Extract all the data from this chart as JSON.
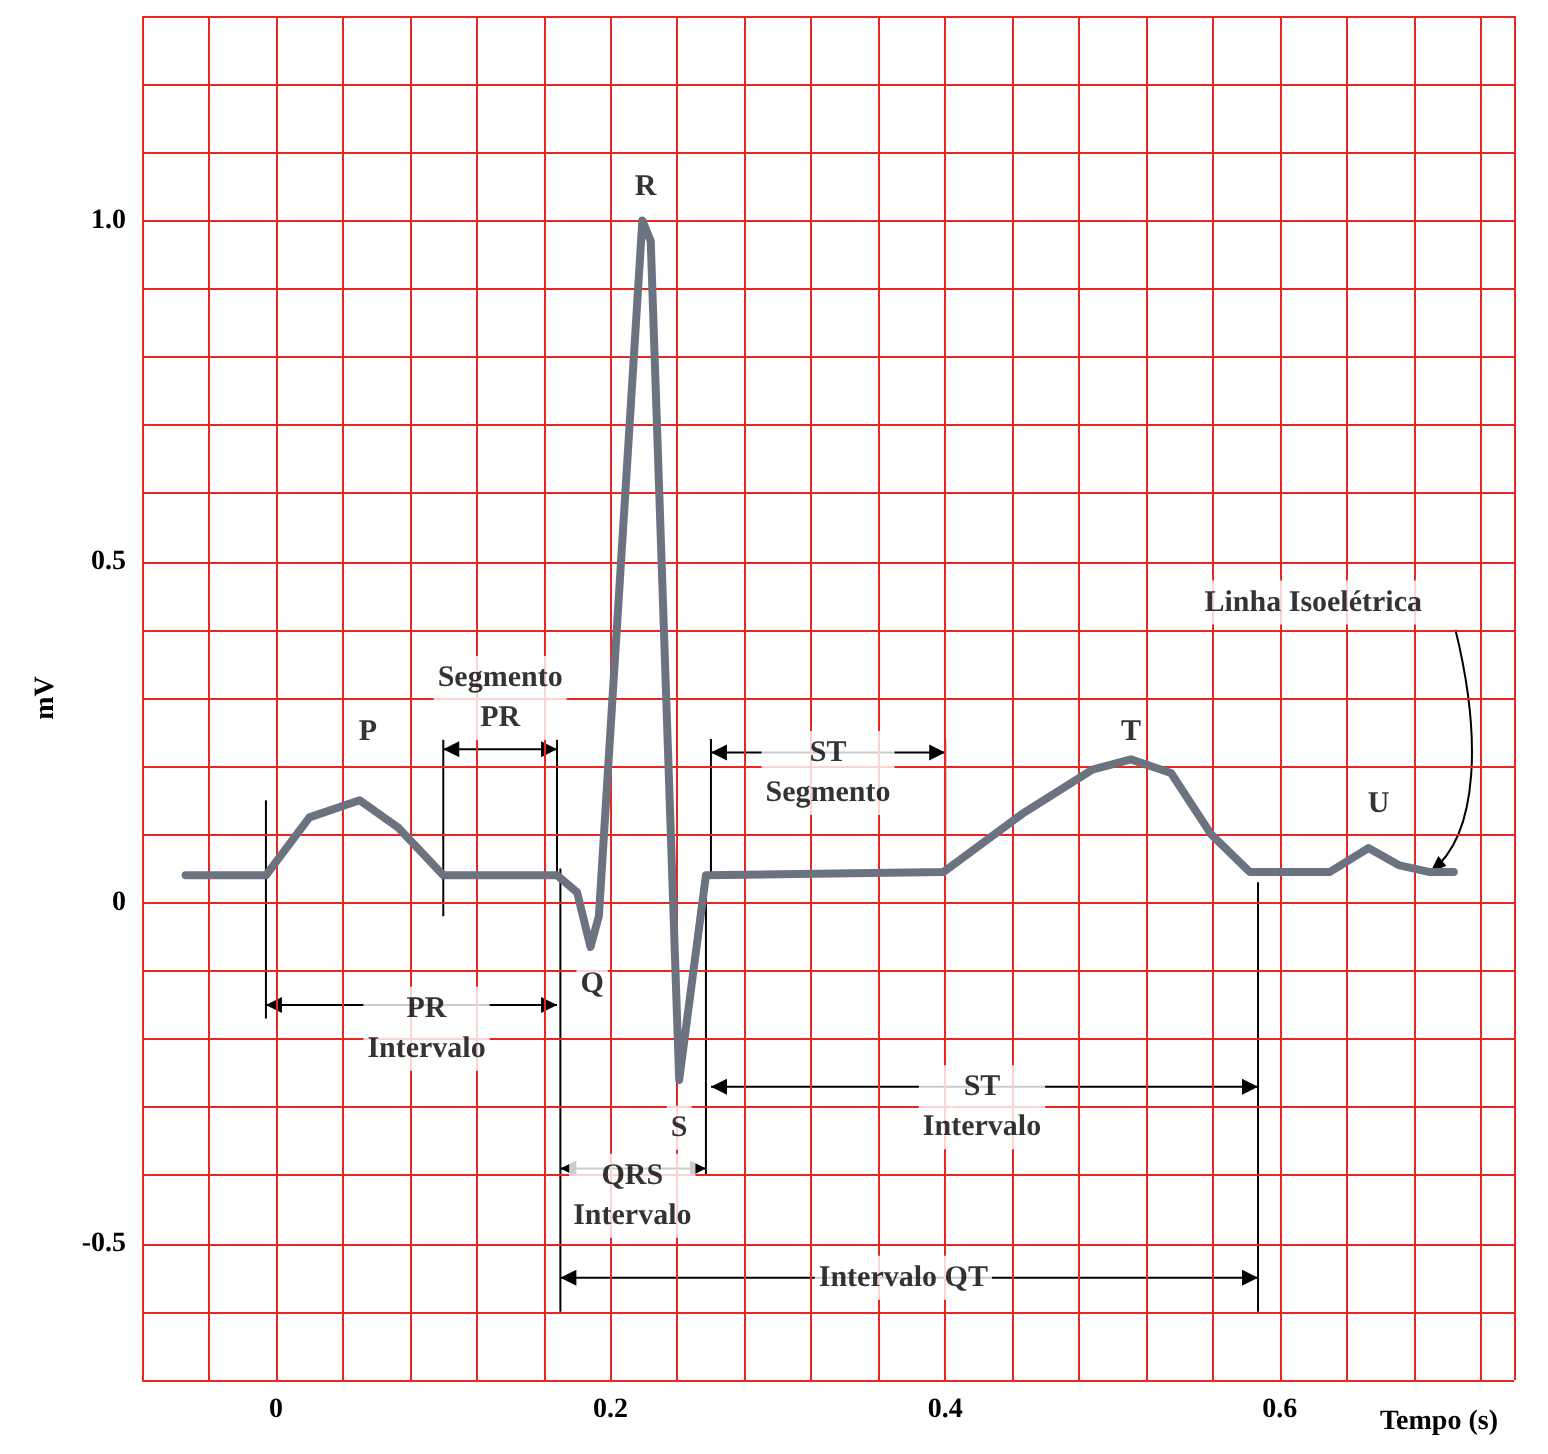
{
  "chart_data": {
    "type": "line",
    "xlabel": "Tempo (s)",
    "ylabel": "mV",
    "x": [
      -0.054,
      -0.006,
      0.02,
      0.05,
      0.073,
      0.1,
      0.168,
      0.18,
      0.188,
      0.193,
      0.219,
      0.224,
      0.241,
      0.257,
      0.399,
      0.446,
      0.488,
      0.511,
      0.535,
      0.559,
      0.582,
      0.63,
      0.653,
      0.671,
      0.689,
      0.704
    ],
    "series": [
      {
        "color": "#6b7380",
        "values": [
          0.04,
          0.04,
          0.125,
          0.15,
          0.11,
          0.04,
          0.04,
          0.015,
          -0.065,
          -0.02,
          1.0,
          0.97,
          -0.26,
          0.04,
          0.045,
          0.13,
          0.195,
          0.21,
          0.19,
          0.1,
          0.045,
          0.045,
          0.08,
          0.055,
          0.045,
          0.045
        ]
      }
    ],
    "xlim": [
      -0.08,
      0.74
    ],
    "xticks": [
      {
        "value": -0.08,
        "label": null
      },
      {
        "value": -0.04,
        "label": null
      },
      0,
      {
        "value": 0.04,
        "label": null
      },
      {
        "value": 0.08,
        "label": null
      },
      {
        "value": 0.12,
        "label": null
      },
      {
        "value": 0.16,
        "label": null
      },
      0.2,
      {
        "value": 0.24,
        "label": null
      },
      {
        "value": 0.28,
        "label": null
      },
      {
        "value": 0.32,
        "label": null
      },
      {
        "value": 0.36,
        "label": null
      },
      0.4,
      {
        "value": 0.44,
        "label": null
      },
      {
        "value": 0.48,
        "label": null
      },
      {
        "value": 0.52,
        "label": null
      },
      {
        "value": 0.56,
        "label": null
      },
      0.6,
      {
        "value": 0.64,
        "label": null
      },
      {
        "value": 0.68,
        "label": null
      },
      {
        "value": 0.72,
        "label": null
      }
    ],
    "ylim": [
      -0.7,
      1.3
    ],
    "yticks": [
      {
        "value": -0.7,
        "label": null
      },
      {
        "value": -0.6,
        "label": null
      },
      -0.5,
      {
        "value": -0.4,
        "label": null
      },
      {
        "value": -0.3,
        "label": null
      },
      {
        "value": -0.2,
        "label": null
      },
      {
        "value": -0.1,
        "label": null
      },
      0,
      {
        "value": 0.1,
        "label": null
      },
      {
        "value": 0.2,
        "label": null
      },
      {
        "value": 0.3,
        "label": null
      },
      {
        "value": 0.4,
        "label": null
      },
      0.5,
      {
        "value": 0.6,
        "label": null
      },
      {
        "value": 0.7,
        "label": null
      },
      {
        "value": 0.8,
        "label": null
      },
      {
        "value": 0.9,
        "label": null
      },
      {
        "value": 1.0,
        "label": "1.0"
      },
      {
        "value": 1.1,
        "label": null
      },
      {
        "value": 1.2,
        "label": null
      },
      {
        "value": 1.3,
        "label": null
      }
    ],
    "grid": true,
    "annotations": [
      {
        "text": "P",
        "x": 0.055,
        "y": 0.25
      },
      {
        "text": "R",
        "x": 0.221,
        "y": 1.05
      },
      {
        "text": "Q",
        "x": 0.189,
        "y": -0.12
      },
      {
        "text": "S",
        "x": 0.241,
        "y": -0.33
      },
      {
        "text": "T",
        "x": 0.511,
        "y": 0.25
      },
      {
        "text": "U",
        "x": 0.659,
        "y": 0.145
      },
      {
        "text": "Segmento\nPR",
        "x": 0.168,
        "y": 0.04
      },
      "PR\nIntervalo",
      "ST\nSegmento",
      "ST\nIntervalo",
      {
        "text": "QRS\nIntervalo",
        "x": 0.257,
        "y": 0.04
      },
      "Intervalo QT",
      {
        "text": "Linha Isoelétrica",
        "x": 0.69,
        "y": 0.045
      }
    ]
  }
}
